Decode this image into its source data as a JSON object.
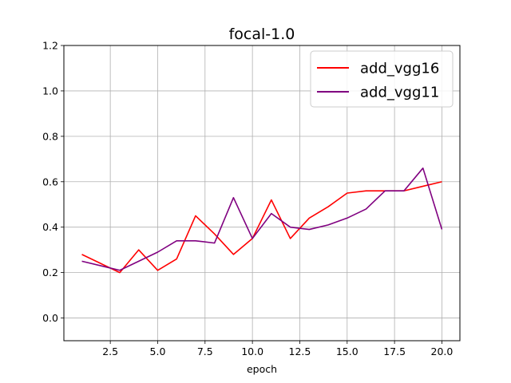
{
  "chart_data": {
    "type": "line",
    "title": "focal-1.0",
    "xlabel": "epoch",
    "ylabel": "",
    "xlim": [
      0.05,
      20.95
    ],
    "ylim": [
      -0.1,
      1.2
    ],
    "xticks": [
      2.5,
      5.0,
      7.5,
      10.0,
      12.5,
      15.0,
      17.5,
      20.0
    ],
    "xtick_labels": [
      "2.5",
      "5.0",
      "7.5",
      "10.0",
      "12.5",
      "15.0",
      "17.5",
      "20.0"
    ],
    "yticks": [
      0.0,
      0.2,
      0.4,
      0.6,
      0.8,
      1.0,
      1.2
    ],
    "ytick_labels": [
      "0.0",
      "0.2",
      "0.4",
      "0.6",
      "0.8",
      "1.0",
      "1.2"
    ],
    "grid": true,
    "legend_position": "top-right",
    "x": [
      1,
      2,
      3,
      4,
      5,
      6,
      7,
      8,
      9,
      10,
      11,
      12,
      13,
      14,
      15,
      16,
      17,
      18,
      19,
      20
    ],
    "series": [
      {
        "name": "add_vgg16",
        "color": "#ff0000",
        "values": [
          0.28,
          0.24,
          0.2,
          0.3,
          0.21,
          0.26,
          0.45,
          0.37,
          0.28,
          0.35,
          0.52,
          0.35,
          0.44,
          0.49,
          0.55,
          0.56,
          0.56,
          0.56,
          0.58,
          0.6
        ]
      },
      {
        "name": "add_vgg11",
        "color": "#800080",
        "values": [
          0.25,
          0.23,
          0.21,
          0.25,
          0.29,
          0.34,
          0.34,
          0.33,
          0.53,
          0.35,
          0.46,
          0.4,
          0.39,
          0.41,
          0.44,
          0.48,
          0.56,
          0.56,
          0.66,
          0.39
        ]
      }
    ]
  }
}
